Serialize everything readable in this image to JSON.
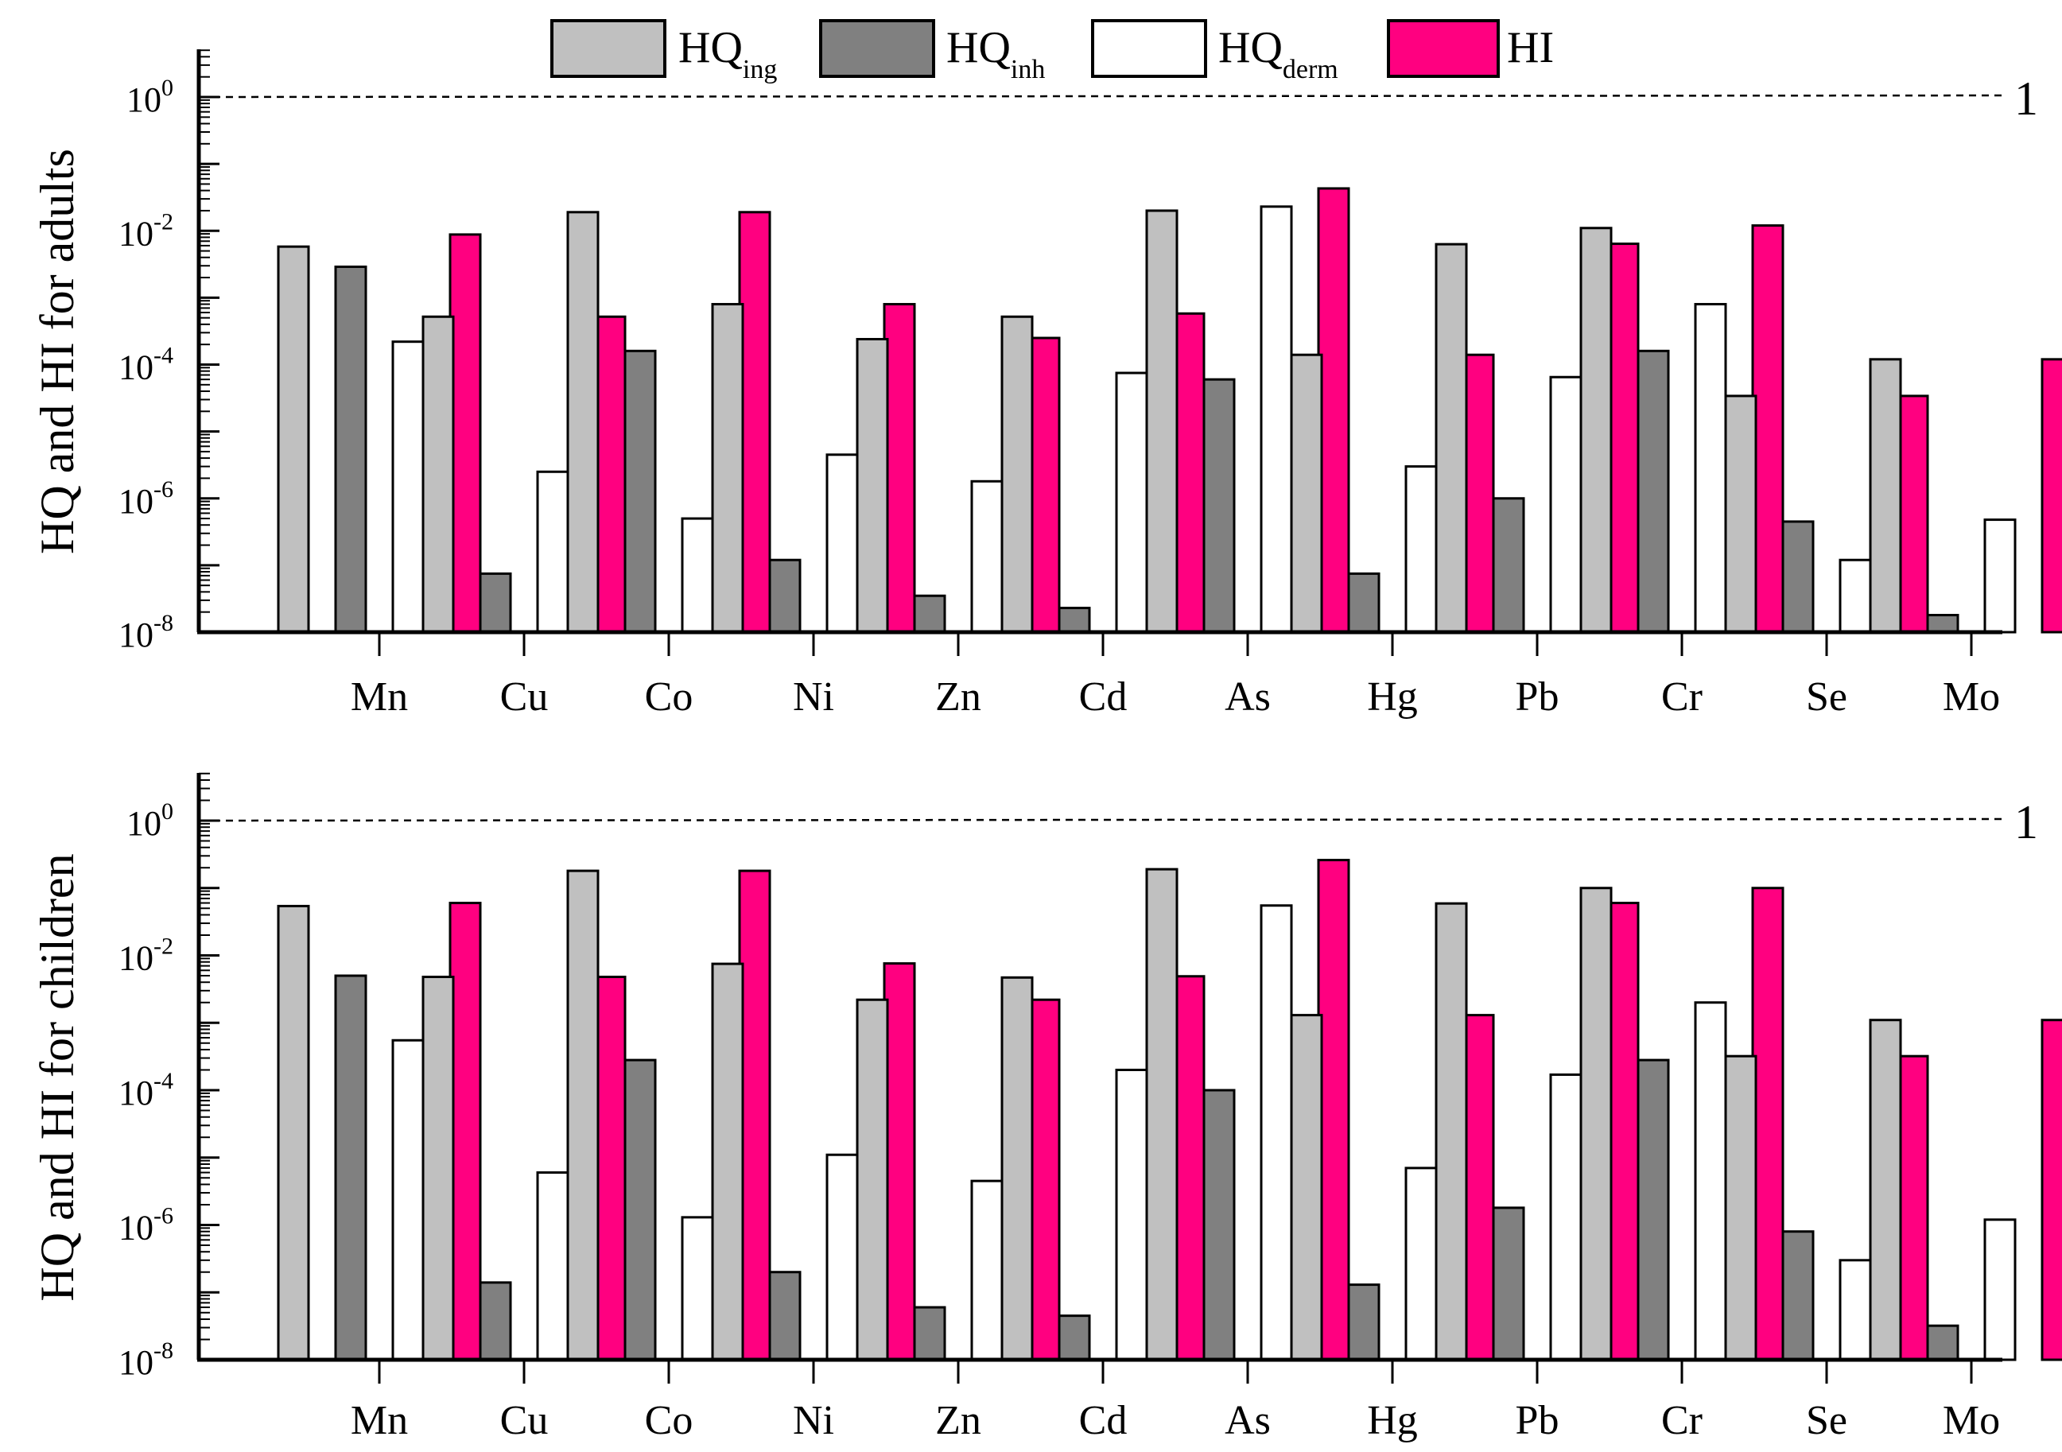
{
  "legend": {
    "items": [
      {
        "key": "ing",
        "base": "HQ",
        "sub": "ing",
        "color": "#c0c0c0"
      },
      {
        "key": "inh",
        "base": "HQ",
        "sub": "inh",
        "color": "#808080"
      },
      {
        "key": "derm",
        "base": "HQ",
        "sub": "derm",
        "color": "#ffffff"
      },
      {
        "key": "hi",
        "base": "HI",
        "sub": "",
        "color": "#ff0080"
      }
    ]
  },
  "threshold_label": "1",
  "chart_data": [
    {
      "type": "bar",
      "scale": "log",
      "ylabel": "HQ and HI for adults",
      "ylim": [
        1e-08,
        4
      ],
      "yticks": [
        -8,
        -6,
        -4,
        -2,
        0
      ],
      "reference_line": 1,
      "categories": [
        "Mn",
        "Cu",
        "Co",
        "Ni",
        "Zn",
        "Cd",
        "As",
        "Hg",
        "Pb",
        "Cr",
        "Se",
        "Mo"
      ],
      "series": [
        {
          "name": "HQ_ing",
          "values": [
            0.0058,
            0.00052,
            0.019,
            0.0008,
            0.00024,
            0.00052,
            0.02,
            0.00014,
            0.0063,
            0.011,
            3.4e-05,
            0.00012
          ]
        },
        {
          "name": "HQ_inh",
          "values": [
            0.0029,
            7.5e-08,
            0.00016,
            1.2e-07,
            3.5e-08,
            2.3e-08,
            6e-05,
            7.5e-08,
            1e-06,
            0.00016,
            4.5e-07,
            1.8e-08
          ]
        },
        {
          "name": "HQ_derm",
          "values": [
            0.00022,
            2.5e-06,
            5e-07,
            4.5e-06,
            1.8e-06,
            7.5e-05,
            0.023,
            3e-06,
            6.5e-05,
            0.0008,
            1.2e-07,
            4.8e-07
          ]
        },
        {
          "name": "HI",
          "values": [
            0.0088,
            0.00052,
            0.019,
            0.0008,
            0.00025,
            0.00058,
            0.043,
            0.00014,
            0.0064,
            0.012,
            3.4e-05,
            0.00012
          ]
        }
      ]
    },
    {
      "type": "bar",
      "scale": "log",
      "ylabel": "HQ and HI for children",
      "ylim": [
        1e-08,
        4
      ],
      "yticks": [
        -8,
        -6,
        -4,
        -2,
        0
      ],
      "reference_line": 1,
      "categories": [
        "Mn",
        "Cu",
        "Co",
        "Ni",
        "Zn",
        "Cd",
        "As",
        "Hg",
        "Pb",
        "Cr",
        "Se",
        "Mo"
      ],
      "series": [
        {
          "name": "HQ_ing",
          "values": [
            0.054,
            0.0048,
            0.18,
            0.0075,
            0.0022,
            0.0047,
            0.19,
            0.0013,
            0.059,
            0.1,
            0.00032,
            0.0011
          ]
        },
        {
          "name": "HQ_inh",
          "values": [
            0.005,
            1.4e-07,
            0.00028,
            2e-07,
            6e-08,
            4.5e-08,
            0.0001,
            1.3e-07,
            1.8e-06,
            0.00028,
            8e-07,
            3.2e-08
          ]
        },
        {
          "name": "HQ_derm",
          "values": [
            0.00055,
            6e-06,
            1.3e-06,
            1.1e-05,
            4.5e-06,
            0.0002,
            0.055,
            7e-06,
            0.00017,
            0.002,
            3e-07,
            1.2e-06
          ]
        },
        {
          "name": "HI",
          "values": [
            0.06,
            0.0048,
            0.18,
            0.0076,
            0.0022,
            0.0049,
            0.26,
            0.0013,
            0.06,
            0.1,
            0.00032,
            0.0011
          ]
        }
      ]
    }
  ]
}
